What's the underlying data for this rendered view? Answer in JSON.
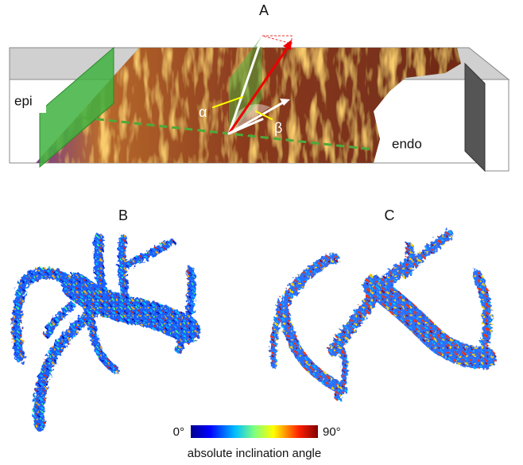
{
  "figure": {
    "panel_labels": [
      "A",
      "B",
      "C"
    ],
    "panel_a": {
      "left_label": "epi",
      "right_label": "endo",
      "angle_labels": [
        "α",
        "β"
      ]
    },
    "colorbar": {
      "min_label": "0°",
      "max_label": "90°",
      "title": "absolute inclination angle"
    }
  }
}
